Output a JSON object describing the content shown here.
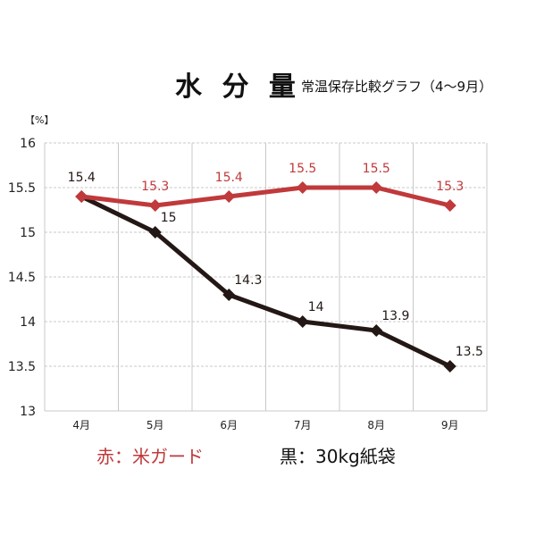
{
  "title": "水 分 量",
  "subtitle": "常温保存比較グラフ（4〜9月）",
  "unit_label": "【%】",
  "colors": {
    "red": "#c0393b",
    "black": "#231815",
    "grid": "#c8c8c8"
  },
  "legend": {
    "red": {
      "label": "赤：米ガード"
    },
    "black": {
      "label": "黒：30kg紙袋"
    }
  },
  "chart_data": {
    "type": "line",
    "categories": [
      "4月",
      "5月",
      "6月",
      "7月",
      "8月",
      "9月"
    ],
    "ylim": [
      13,
      16
    ],
    "yticks": [
      "13",
      "13.5",
      "14",
      "14.5",
      "15",
      "15.5",
      "16"
    ],
    "grid": true,
    "series": [
      {
        "name": "米ガード",
        "color": "#c0393b",
        "values": [
          15.4,
          15.3,
          15.4,
          15.5,
          15.5,
          15.3
        ],
        "labels": [
          "",
          "15.3",
          "15.4",
          "15.5",
          "15.5",
          "15.3"
        ]
      },
      {
        "name": "30kg紙袋",
        "color": "#231815",
        "values": [
          15.4,
          15,
          14.3,
          14,
          13.9,
          13.5
        ],
        "labels": [
          "15.4",
          "15",
          "14.3",
          "14",
          "13.9",
          "13.5"
        ]
      }
    ]
  }
}
